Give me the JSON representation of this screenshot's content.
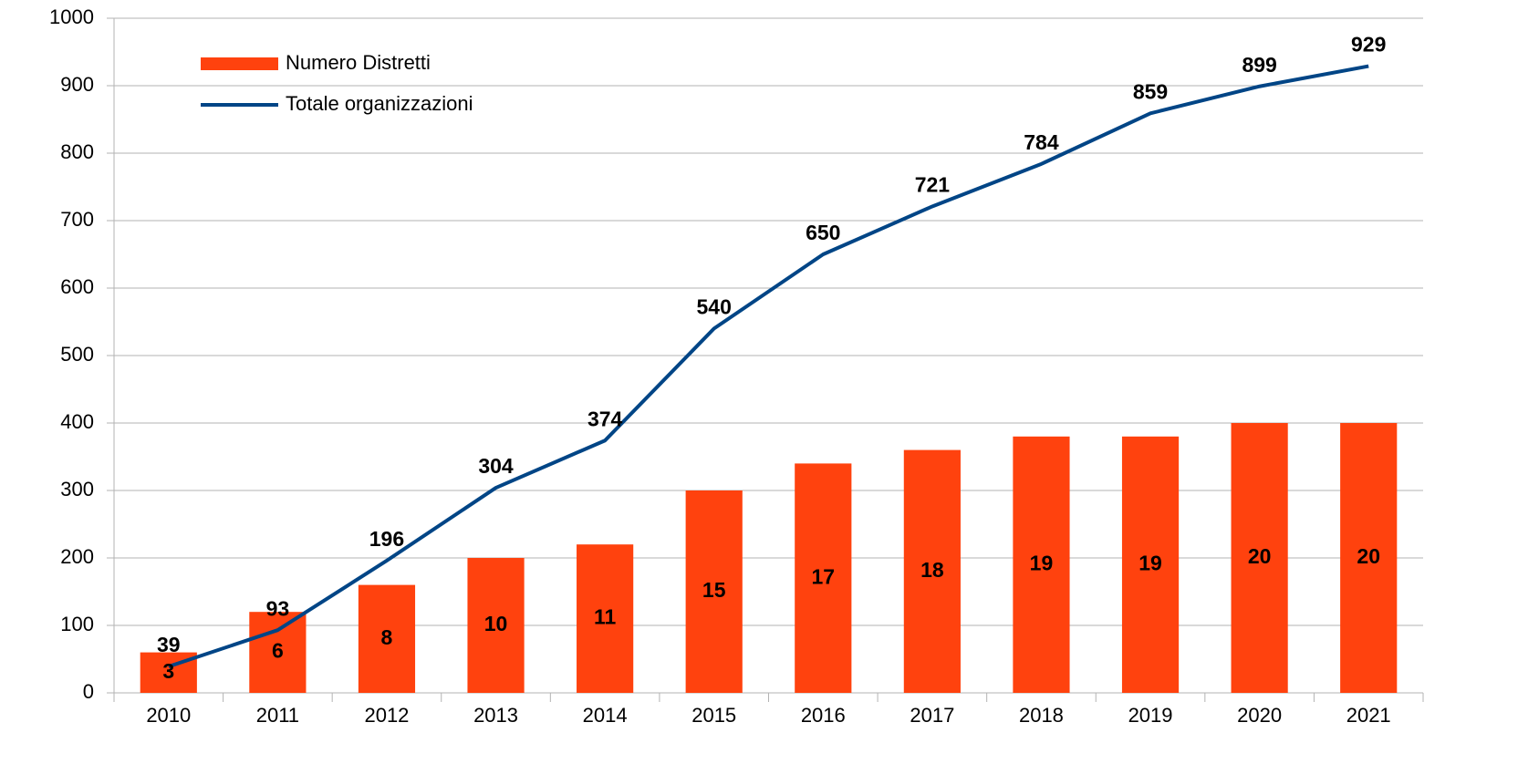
{
  "chart_data": {
    "type": "bar-line",
    "categories": [
      "2010",
      "2011",
      "2012",
      "2013",
      "2014",
      "2015",
      "2016",
      "2017",
      "2018",
      "2019",
      "2020",
      "2021"
    ],
    "series": [
      {
        "name": "Numero Distretti",
        "type": "bar",
        "color": "#ff420e",
        "axis": "y2",
        "values": [
          3,
          6,
          8,
          10,
          11,
          15,
          17,
          18,
          19,
          19,
          20,
          20
        ]
      },
      {
        "name": "Totale organizzazioni",
        "type": "line",
        "color": "#004586",
        "values": [
          39,
          93,
          196,
          304,
          374,
          540,
          650,
          721,
          784,
          859,
          899,
          929
        ]
      }
    ],
    "ylim": [
      0,
      1000
    ],
    "yticks": [
      0,
      100,
      200,
      300,
      400,
      500,
      600,
      700,
      800,
      900,
      1000
    ],
    "y2lim": [
      0,
      50
    ],
    "grid": true,
    "legend": "top-left"
  }
}
